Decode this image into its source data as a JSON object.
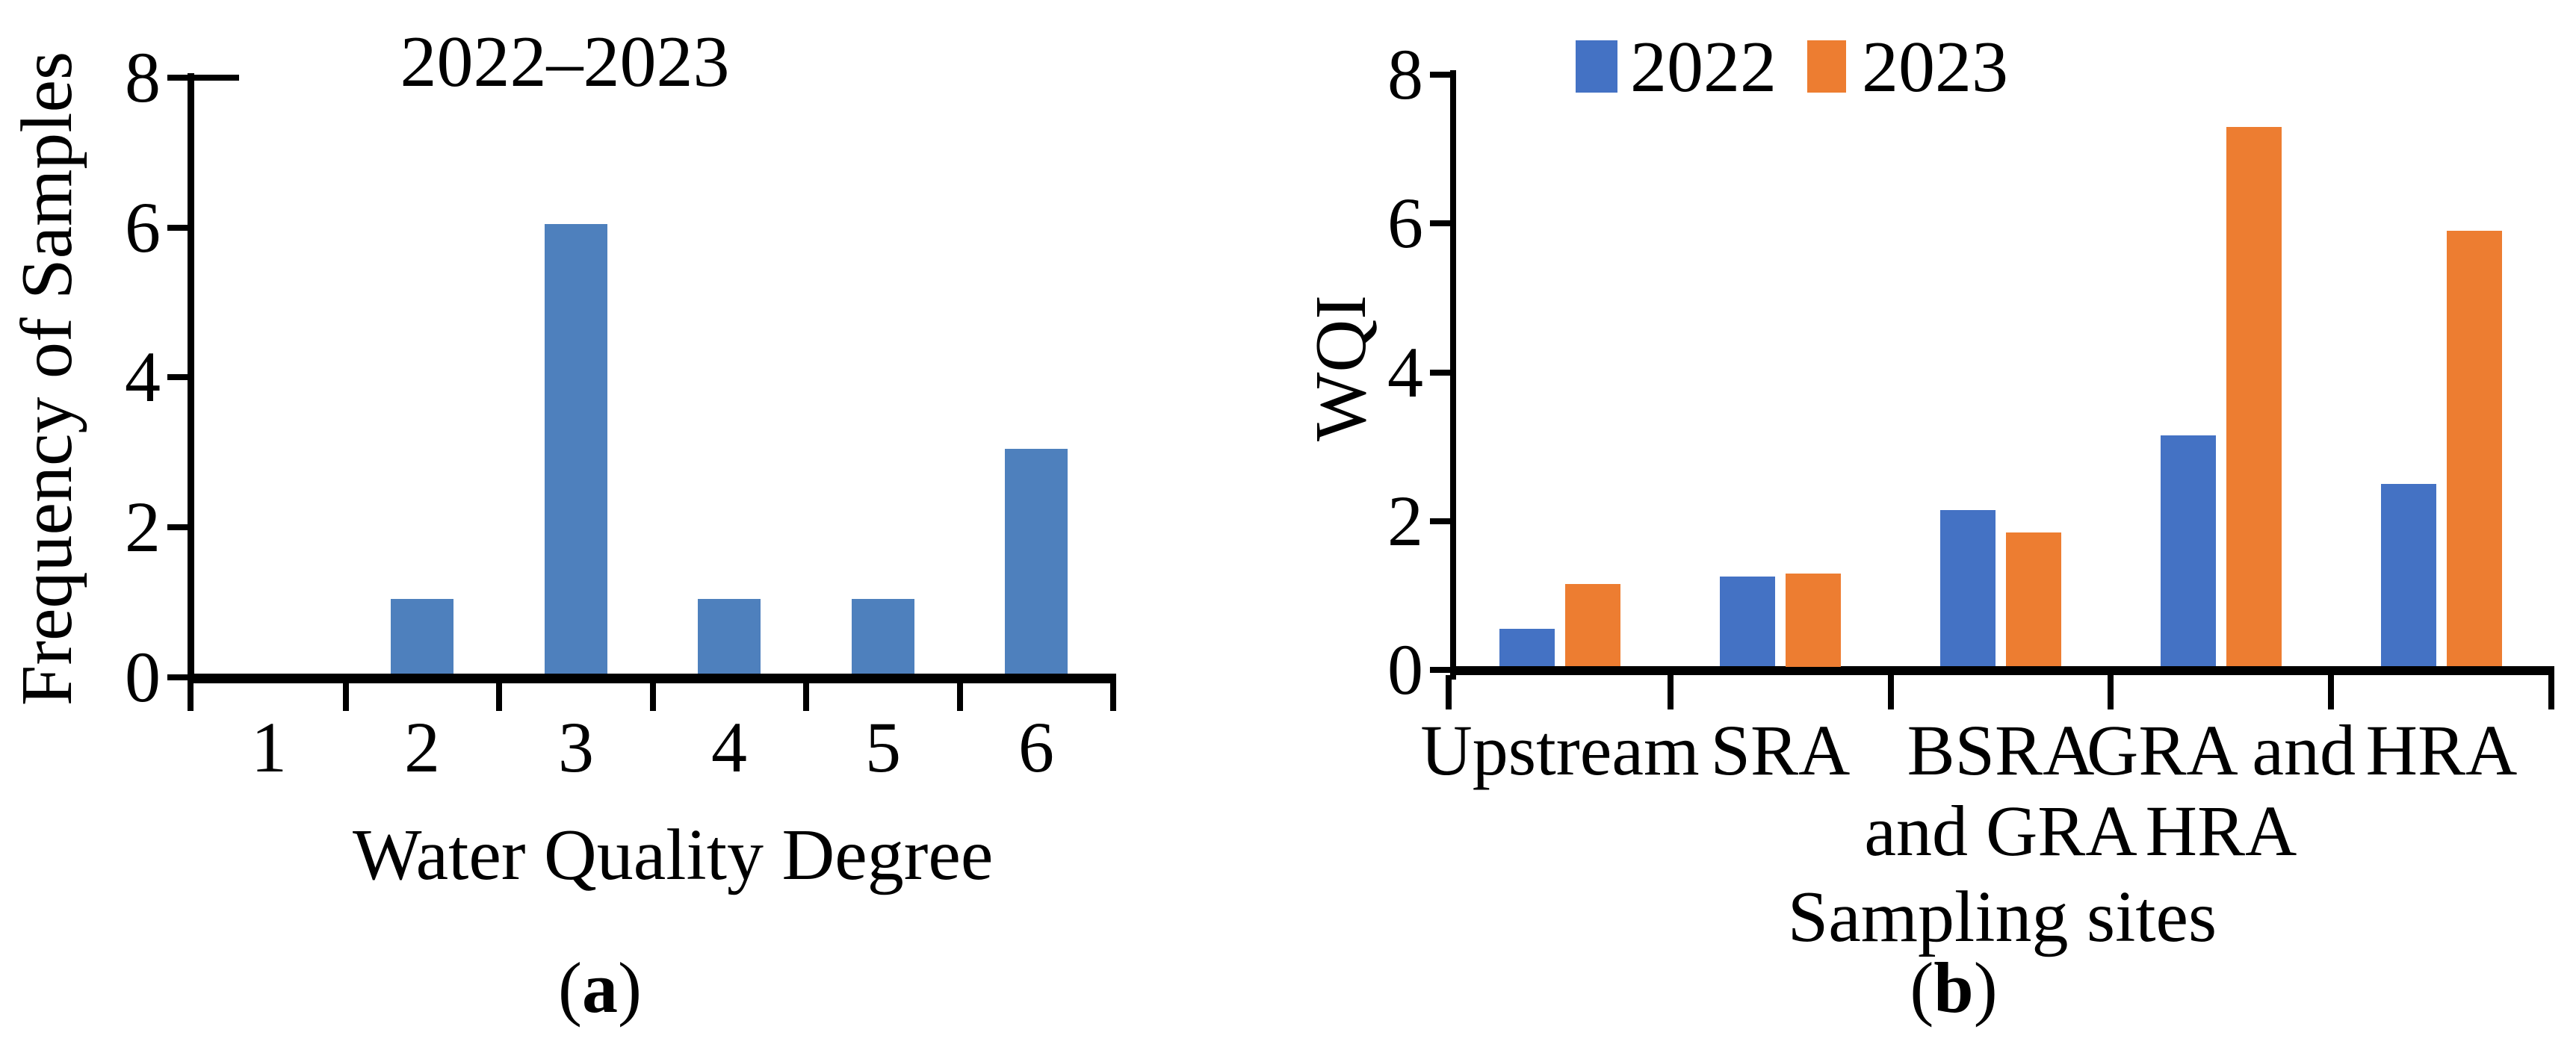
{
  "chart_data": [
    {
      "panel": "a",
      "type": "bar",
      "title": "2022–2023",
      "xlabel": "Water Quality Degree",
      "ylabel": "Frequency of Samples",
      "caption": {
        "open": "(",
        "letter": "a",
        "close": ")"
      },
      "categories": [
        "1",
        "2",
        "3",
        "4",
        "5",
        "6"
      ],
      "values": [
        0,
        1,
        6,
        1,
        1,
        3
      ],
      "ylim": [
        0,
        8
      ],
      "yticks": [
        "0",
        "2",
        "4",
        "6",
        "8"
      ],
      "bar_color": "#4E80BD",
      "axis_color": "#000000",
      "grid": false,
      "legend_position": "none"
    },
    {
      "panel": "b",
      "type": "bar",
      "title": "",
      "xlabel": "Sampling sites",
      "ylabel": "WQI",
      "caption": {
        "open": "(",
        "letter": "b",
        "close": ")"
      },
      "categories": [
        "Upstream",
        "SRA",
        "BSRA and GRA",
        "GRA and HRA",
        "HRA"
      ],
      "category_label_lines": [
        [
          "Upstream",
          ""
        ],
        [
          "SRA",
          ""
        ],
        [
          "BSRA",
          "and GRA"
        ],
        [
          "GRA and",
          "HRA"
        ],
        [
          "HRA",
          ""
        ]
      ],
      "series": [
        {
          "name": "2022",
          "color": "#4472C4",
          "values": [
            0.5,
            1.2,
            2.1,
            3.1,
            2.45
          ]
        },
        {
          "name": "2023",
          "color": "#ED7D31",
          "values": [
            1.1,
            1.25,
            1.8,
            7.25,
            5.85
          ]
        }
      ],
      "ylim": [
        0,
        8
      ],
      "yticks": [
        "0",
        "2",
        "4",
        "6",
        "8"
      ],
      "grid": false,
      "legend_position": "top"
    }
  ]
}
